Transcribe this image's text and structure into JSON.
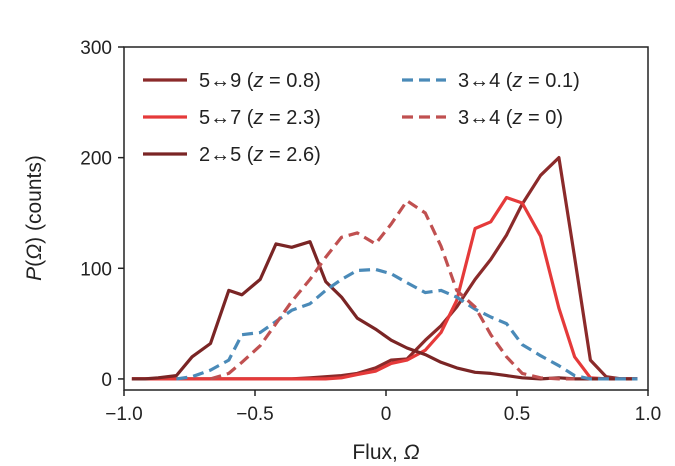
{
  "chart_data": {
    "type": "line",
    "xlabel_text": "Flux, ",
    "xlabel_symbol": "Ω",
    "ylabel_prefix": "P(",
    "ylabel_symbol": "Ω",
    "ylabel_suffix": ") (counts)",
    "xlim": [
      -1.0,
      1.0
    ],
    "ylim": [
      -10,
      300
    ],
    "xticks": [
      -1.0,
      -0.5,
      0,
      0.5,
      1.0
    ],
    "xtick_labels": [
      "−1.0",
      "−0.5",
      "0",
      "0.5",
      "1.0"
    ],
    "yticks": [
      0,
      100,
      200,
      300
    ],
    "ytick_labels": [
      "0",
      "100",
      "200",
      "300"
    ],
    "grid": false,
    "legend_position": "top",
    "series": [
      {
        "name_pre": "5↔9 (",
        "name_var": "z",
        "name_post": " = 0.8)",
        "color": "#8b2a2a",
        "dash": "solid",
        "x": [
          -0.97,
          -0.92,
          -0.87,
          -0.8,
          -0.74,
          -0.67,
          -0.6,
          -0.55,
          -0.48,
          -0.42,
          -0.36,
          -0.29,
          -0.23,
          -0.17,
          -0.11,
          -0.04,
          0.02,
          0.08,
          0.15,
          0.21,
          0.27,
          0.34,
          0.4,
          0.46,
          0.52,
          0.59,
          0.66,
          0.72,
          0.78,
          0.84,
          0.9,
          0.96
        ],
        "y": [
          0,
          0,
          0,
          0,
          0,
          0,
          0,
          0,
          0,
          0,
          0,
          1,
          2,
          3,
          5,
          10,
          17,
          18,
          35,
          48,
          65,
          90,
          108,
          130,
          158,
          184,
          200,
          110,
          17,
          2,
          0,
          0
        ]
      },
      {
        "name_pre": "5↔7 (",
        "name_var": "z",
        "name_post": " = 2.3)",
        "color": "#e53a3a",
        "dash": "solid",
        "x": [
          -0.97,
          -0.92,
          -0.87,
          -0.8,
          -0.74,
          -0.67,
          -0.6,
          -0.55,
          -0.48,
          -0.42,
          -0.36,
          -0.29,
          -0.23,
          -0.17,
          -0.11,
          -0.04,
          0.02,
          0.08,
          0.15,
          0.21,
          0.27,
          0.34,
          0.4,
          0.46,
          0.52,
          0.59,
          0.66,
          0.72,
          0.78,
          0.84,
          0.9,
          0.96
        ],
        "y": [
          0,
          0,
          0,
          0,
          0,
          0,
          0,
          0,
          0,
          0,
          0,
          0,
          0,
          1,
          4,
          7,
          14,
          17,
          26,
          42,
          71,
          136,
          142,
          164,
          159,
          129,
          64,
          20,
          1,
          0,
          0,
          0
        ]
      },
      {
        "name_pre": "2↔5 (",
        "name_var": "z",
        "name_post": " = 2.6)",
        "color": "#7a2525",
        "dash": "solid",
        "x": [
          -0.97,
          -0.92,
          -0.87,
          -0.8,
          -0.74,
          -0.67,
          -0.6,
          -0.55,
          -0.48,
          -0.42,
          -0.36,
          -0.29,
          -0.23,
          -0.17,
          -0.11,
          -0.04,
          0.02,
          0.08,
          0.15,
          0.21,
          0.27,
          0.34,
          0.4,
          0.46,
          0.52,
          0.59,
          0.66,
          0.72,
          0.78,
          0.84,
          0.9,
          0.96
        ],
        "y": [
          0,
          0,
          1,
          3,
          20,
          32,
          80,
          76,
          90,
          122,
          119,
          124,
          88,
          74,
          55,
          45,
          35,
          28,
          22,
          15,
          10,
          6,
          5,
          3,
          1,
          0,
          1,
          0,
          0,
          0,
          0,
          0
        ]
      },
      {
        "name_pre": "3↔4 (",
        "name_var": "z",
        "name_post": " = 0.1)",
        "color": "#4a8ab8",
        "dash": "dashed",
        "x": [
          -0.8,
          -0.74,
          -0.67,
          -0.6,
          -0.55,
          -0.48,
          -0.42,
          -0.36,
          -0.29,
          -0.23,
          -0.17,
          -0.11,
          -0.04,
          0.02,
          0.08,
          0.15,
          0.21,
          0.27,
          0.34,
          0.4,
          0.46,
          0.52,
          0.59,
          0.66,
          0.72,
          0.78,
          0.84,
          0.9,
          0.96
        ],
        "y": [
          0,
          2,
          8,
          17,
          40,
          42,
          52,
          62,
          68,
          80,
          90,
          98,
          99,
          95,
          87,
          78,
          80,
          74,
          63,
          56,
          50,
          31,
          21,
          12,
          3,
          0,
          0,
          0,
          0
        ]
      },
      {
        "name_pre": "3↔4 (",
        "name_var": "z",
        "name_post": " = 0)",
        "color": "#c05050",
        "dash": "dashed",
        "x": [
          -0.67,
          -0.6,
          -0.55,
          -0.48,
          -0.42,
          -0.36,
          -0.29,
          -0.23,
          -0.17,
          -0.11,
          -0.04,
          0.02,
          0.08,
          0.15,
          0.21,
          0.27,
          0.34,
          0.4,
          0.46,
          0.52,
          0.59,
          0.66,
          0.72
        ],
        "y": [
          0,
          5,
          15,
          30,
          50,
          70,
          90,
          110,
          128,
          132,
          122,
          140,
          161,
          150,
          120,
          80,
          65,
          40,
          20,
          5,
          1,
          0,
          0
        ]
      }
    ]
  }
}
